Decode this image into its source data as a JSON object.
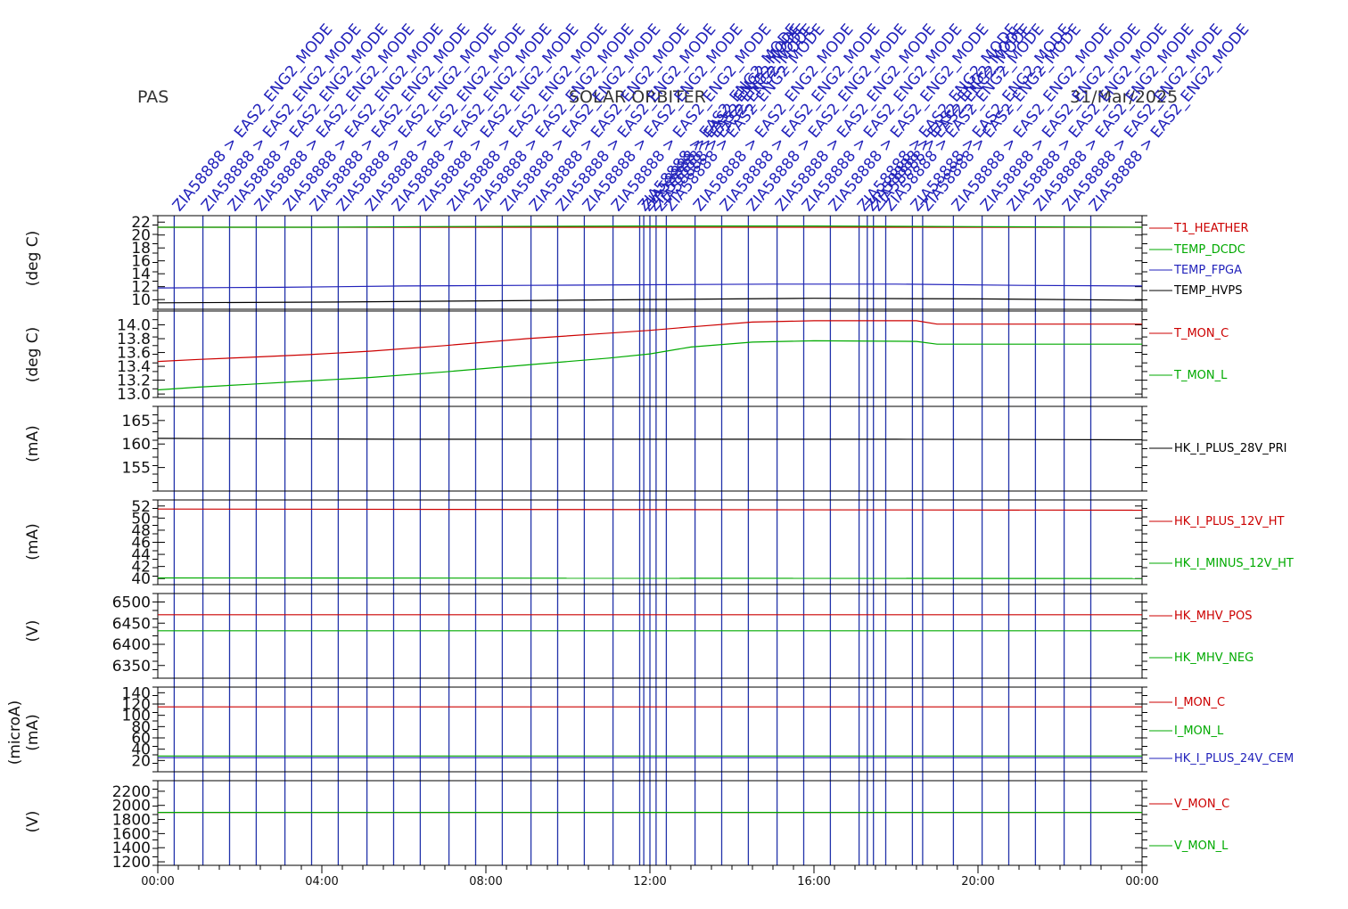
{
  "header": {
    "instrument": "PAS",
    "spacecraft": "SOLAR ORBITER",
    "date": "31/Mar/2025"
  },
  "chart_data": {
    "type": "line",
    "x_axis": {
      "range": [
        "00:00",
        "24:00"
      ],
      "tick_labels": [
        "00:00",
        "04:00",
        "08:00",
        "12:00",
        "16:00",
        "20:00",
        "00:00"
      ],
      "tick_hours": [
        0,
        4,
        8,
        12,
        16,
        20,
        24
      ]
    },
    "events": {
      "hours": [
        0.4,
        1.1,
        1.75,
        2.4,
        3.1,
        3.75,
        4.4,
        5.1,
        5.75,
        6.4,
        7.1,
        7.75,
        8.4,
        9.1,
        9.75,
        10.4,
        11.1,
        11.75,
        11.85,
        12.0,
        12.15,
        12.4,
        13.1,
        13.75,
        14.4,
        15.1,
        15.75,
        16.4,
        17.1,
        17.3,
        17.45,
        17.75,
        18.4,
        18.65,
        19.4,
        20.1,
        20.75,
        21.4,
        22.1,
        22.75
      ],
      "labels": [
        "ZIA58888 > EAS2_ENG2_MODE",
        "ZIA58888 > EAS2_ENG2_MODE",
        "ZIA58888 > EAS2_ENG2_MODE",
        "ZIA58888 > EAS2_ENG2_MODE",
        "ZIA58888 > EAS2_ENG2_MODE",
        "ZIA58888 > EAS2_ENG2_MODE",
        "ZIA58888 > EAS2_ENG2_MODE",
        "ZIA58888 > EAS2_ENG2_MODE",
        "ZIA58888 > EAS2_ENG2_MODE",
        "ZIA58888 > EAS2_ENG2_MODE",
        "ZIA58888 > EAS2_ENG2_MODE",
        "ZIA58888 > EAS2_ENG2_MODE",
        "ZIA58888 > EAS2_ENG2_MODE",
        "ZIA58888 > EAS2_ENG2_MODE",
        "ZIA58888 > EAS2_ENG2_MODE",
        "ZIA58888 > EAS2_ENG2_MODE",
        "ZIA58888 > EAS2_ENG2_MODE",
        "ZIA58888 > EAS2_ENG2_MODE",
        "ZIA58888 > EAS2_ENG2_MODE",
        "ZIA58888 > EAS2_ENG2_MODE",
        "ZIA58888 > EAS2_ENG2_MODE",
        "ZIA58888 > EAS2_ENG2_MODE",
        "ZIA58888 > EAS2_ENG2_MODE",
        "ZIA58888 > EAS2_ENG2_MODE",
        "ZIA58888 > EAS2_ENG2_MODE",
        "ZIA58888 > EAS2_ENG2_MODE",
        "ZIA58888 > EAS2_ENG2_MODE",
        "ZIA58888 > EAS2_ENG2_MODE",
        "ZIA58888 > EAS2_ENG2_MODE",
        "ZIA58888 > EAS2_ENG2_MODE",
        "ZIA58888 > EAS2_ENG2_MODE",
        "ZIA58888 > EAS2_ENG2_MODE",
        "ZIA58888 > EAS2_ENG2_MODE",
        "ZIA58888 > EAS2_ENG2_MODE",
        "ZIA58888 > EAS2_ENG2_MODE",
        "ZIA58888 > EAS2_ENG2_MODE",
        "ZIA58888 > EAS2_ENG2_MODE",
        "ZIA58888 > EAS2_ENG2_MODE",
        "ZIA58888 > EAS2_ENG2_MODE",
        "ZIA58888 > EAS2_ENG2_MODE"
      ]
    },
    "panels": [
      {
        "ylabel": "(deg C)",
        "ylim": [
          8.5,
          23
        ],
        "yticks": [
          10,
          12,
          14,
          16,
          18,
          20,
          22
        ],
        "series": [
          {
            "name": "T1_HEATHER",
            "color": "#cc0000",
            "points": [
              [
                0,
                21.2
              ],
              [
                24,
                21.2
              ]
            ]
          },
          {
            "name": "TEMP_DCDC",
            "color": "#00aa00",
            "points": [
              [
                0,
                21.2
              ],
              [
                4,
                21.2
              ],
              [
                6.5,
                21.3
              ],
              [
                12,
                21.4
              ],
              [
                16,
                21.4
              ],
              [
                20,
                21.3
              ],
              [
                24,
                21.2
              ]
            ]
          },
          {
            "name": "TEMP_FPGA",
            "color": "#2222bb",
            "points": [
              [
                0,
                11.8
              ],
              [
                3,
                11.9
              ],
              [
                6,
                12.1
              ],
              [
                9,
                12.2
              ],
              [
                12,
                12.3
              ],
              [
                15,
                12.4
              ],
              [
                18,
                12.4
              ],
              [
                21,
                12.2
              ],
              [
                24,
                12.1
              ]
            ]
          },
          {
            "name": "TEMP_HVPS",
            "color": "#000000",
            "points": [
              [
                0,
                9.5
              ],
              [
                4,
                9.6
              ],
              [
                8,
                9.8
              ],
              [
                12,
                10.0
              ],
              [
                16,
                10.2
              ],
              [
                20,
                10.1
              ],
              [
                24,
                9.9
              ]
            ]
          }
        ]
      },
      {
        "ylabel": "(deg C)",
        "ylim": [
          12.95,
          14.2
        ],
        "yticks": [
          13.0,
          13.2,
          13.4,
          13.6,
          13.8,
          14.0
        ],
        "series": [
          {
            "name": "T_MON_C",
            "color": "#cc0000",
            "points": [
              [
                0,
                13.47
              ],
              [
                1,
                13.5
              ],
              [
                2.2,
                13.53
              ],
              [
                3.7,
                13.57
              ],
              [
                5.2,
                13.62
              ],
              [
                7,
                13.7
              ],
              [
                9,
                13.8
              ],
              [
                11,
                13.88
              ],
              [
                12,
                13.92
              ],
              [
                13,
                13.97
              ],
              [
                14.5,
                14.04
              ],
              [
                16,
                14.06
              ],
              [
                18.5,
                14.06
              ],
              [
                19,
                14.01
              ],
              [
                24,
                14.01
              ]
            ]
          },
          {
            "name": "T_MON_L",
            "color": "#00aa00",
            "points": [
              [
                0,
                13.06
              ],
              [
                1,
                13.1
              ],
              [
                2.2,
                13.14
              ],
              [
                3.7,
                13.19
              ],
              [
                5.2,
                13.24
              ],
              [
                7,
                13.32
              ],
              [
                9,
                13.42
              ],
              [
                11,
                13.52
              ],
              [
                12,
                13.58
              ],
              [
                13,
                13.68
              ],
              [
                14.5,
                13.75
              ],
              [
                16,
                13.77
              ],
              [
                18.5,
                13.76
              ],
              [
                19,
                13.72
              ],
              [
                24,
                13.72
              ]
            ]
          }
        ]
      },
      {
        "ylabel": "(mA)",
        "ylim": [
          150,
          168
        ],
        "yticks": [
          155,
          160,
          165
        ],
        "series": [
          {
            "name": "HK_I_PLUS_28V_PRI",
            "color": "#000000",
            "points": [
              [
                0,
                161.2
              ],
              [
                6,
                161.0
              ],
              [
                12,
                161.0
              ],
              [
                18,
                161.0
              ],
              [
                24,
                160.9
              ]
            ]
          }
        ]
      },
      {
        "ylabel": "(mA)",
        "ylim": [
          39,
          53
        ],
        "yticks": [
          40,
          42,
          44,
          46,
          48,
          50,
          52
        ],
        "series": [
          {
            "name": "HK_I_PLUS_12V_HT",
            "color": "#cc0000",
            "points": [
              [
                0,
                51.5
              ],
              [
                24,
                51.3
              ]
            ]
          },
          {
            "name": "HK_I_MINUS_12V_HT",
            "color": "#00aa00",
            "points": [
              [
                0,
                40.1
              ],
              [
                24,
                40.0
              ]
            ]
          }
        ]
      },
      {
        "ylabel": "(V)",
        "ylim": [
          6320,
          6520
        ],
        "yticks": [
          6350,
          6400,
          6450,
          6500
        ],
        "series": [
          {
            "name": "HK_MHV_POS",
            "color": "#cc0000",
            "points": [
              [
                0,
                6470
              ],
              [
                24,
                6470
              ]
            ]
          },
          {
            "name": "HK_MHV_NEG",
            "color": "#00aa00",
            "points": [
              [
                0,
                6432
              ],
              [
                24,
                6432
              ]
            ]
          }
        ]
      },
      {
        "ylabel": "(mA)",
        "ylabel2": "(microA)",
        "ylim": [
          0,
          150
        ],
        "yticks": [
          20,
          40,
          60,
          80,
          100,
          120,
          140
        ],
        "series": [
          {
            "name": "I_MON_C",
            "color": "#cc0000",
            "points": [
              [
                0,
                115
              ],
              [
                24,
                115
              ]
            ]
          },
          {
            "name": "I_MON_L",
            "color": "#00aa00",
            "points": [
              [
                0,
                28
              ],
              [
                24,
                28
              ]
            ]
          },
          {
            "name": "HK_I_PLUS_24V_CEM",
            "color": "#2222bb",
            "points": [
              [
                0,
                25
              ],
              [
                24,
                25
              ]
            ]
          }
        ]
      },
      {
        "ylabel": "(V)",
        "ylim": [
          1150,
          2350
        ],
        "yticks": [
          1200,
          1400,
          1600,
          1800,
          2000,
          2200
        ],
        "series": [
          {
            "name": "V_MON_C",
            "color": "#cc0000",
            "points": [
              [
                0,
                1900
              ],
              [
                24,
                1900
              ]
            ]
          },
          {
            "name": "V_MON_L",
            "color": "#00aa00",
            "points": [
              [
                0,
                1900
              ],
              [
                24,
                1900
              ]
            ]
          }
        ]
      }
    ]
  }
}
